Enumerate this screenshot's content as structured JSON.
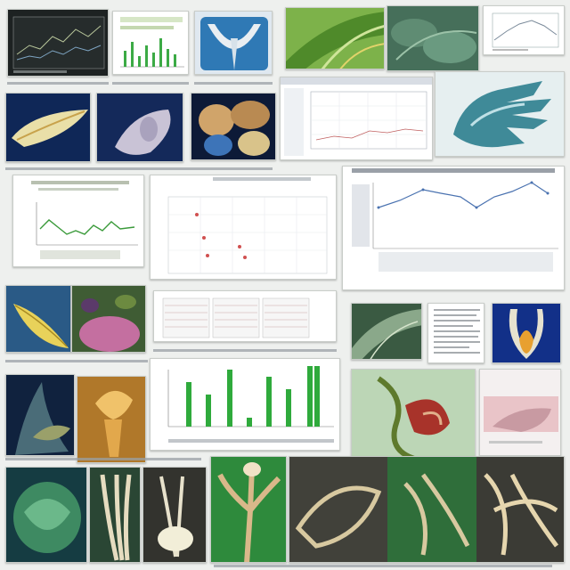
{
  "collage": {
    "background": "#eef0ee",
    "tiles": [
      {
        "name": "dark-line-chart-tile",
        "kind": "chart-screen"
      },
      {
        "name": "green-bar-spectrum-tile",
        "kind": "chart"
      },
      {
        "name": "blue-leaf-diagram-tile",
        "kind": "photo"
      },
      {
        "name": "green-leaf-closeup-tile",
        "kind": "photo"
      },
      {
        "name": "green-foliage-tile",
        "kind": "photo"
      },
      {
        "name": "small-line-plot-tile",
        "kind": "chart"
      },
      {
        "name": "yellow-leaf-on-navy-tile",
        "kind": "photo"
      },
      {
        "name": "pale-seed-on-navy-tile",
        "kind": "photo"
      },
      {
        "name": "sliced-specimens-tile",
        "kind": "photo"
      },
      {
        "name": "software-plot-window-tile",
        "kind": "screen"
      },
      {
        "name": "teal-hand-render-tile",
        "kind": "photo"
      },
      {
        "name": "green-line-chart-tile",
        "kind": "chart"
      },
      {
        "name": "scatter-grid-chart-tile",
        "kind": "chart"
      },
      {
        "name": "blue-line-chart-tile",
        "kind": "chart"
      },
      {
        "name": "yellow-leaf-photo-tile",
        "kind": "photo"
      },
      {
        "name": "pink-flower-photo-tile",
        "kind": "photo"
      },
      {
        "name": "data-table-strip-tile",
        "kind": "table"
      },
      {
        "name": "leafy-plant-photo-tile",
        "kind": "photo"
      },
      {
        "name": "printed-text-panel-tile",
        "kind": "document"
      },
      {
        "name": "flame-specimen-on-navy-tile",
        "kind": "photo"
      },
      {
        "name": "purple-plant-photo-tile",
        "kind": "photo"
      },
      {
        "name": "golden-sculpture-tile",
        "kind": "photo"
      },
      {
        "name": "green-bar-chart-tile",
        "kind": "chart"
      },
      {
        "name": "red-root-specimen-tile",
        "kind": "photo"
      },
      {
        "name": "pink-specimen-tile",
        "kind": "photo"
      },
      {
        "name": "green-lettuce-tile",
        "kind": "photo"
      },
      {
        "name": "pale-roots-tile",
        "kind": "photo"
      },
      {
        "name": "white-flower-roots-tile",
        "kind": "photo"
      },
      {
        "name": "branch-sculpture-tile",
        "kind": "photo"
      },
      {
        "name": "root-specimens-row-tile",
        "kind": "photo"
      }
    ],
    "colors": {
      "navy": "#102a5c",
      "leaf_green": "#5f9a3a",
      "chart_blue": "#4a72b0",
      "chart_green": "#2faa3c",
      "specimen_tan": "#d8c9a0"
    }
  }
}
